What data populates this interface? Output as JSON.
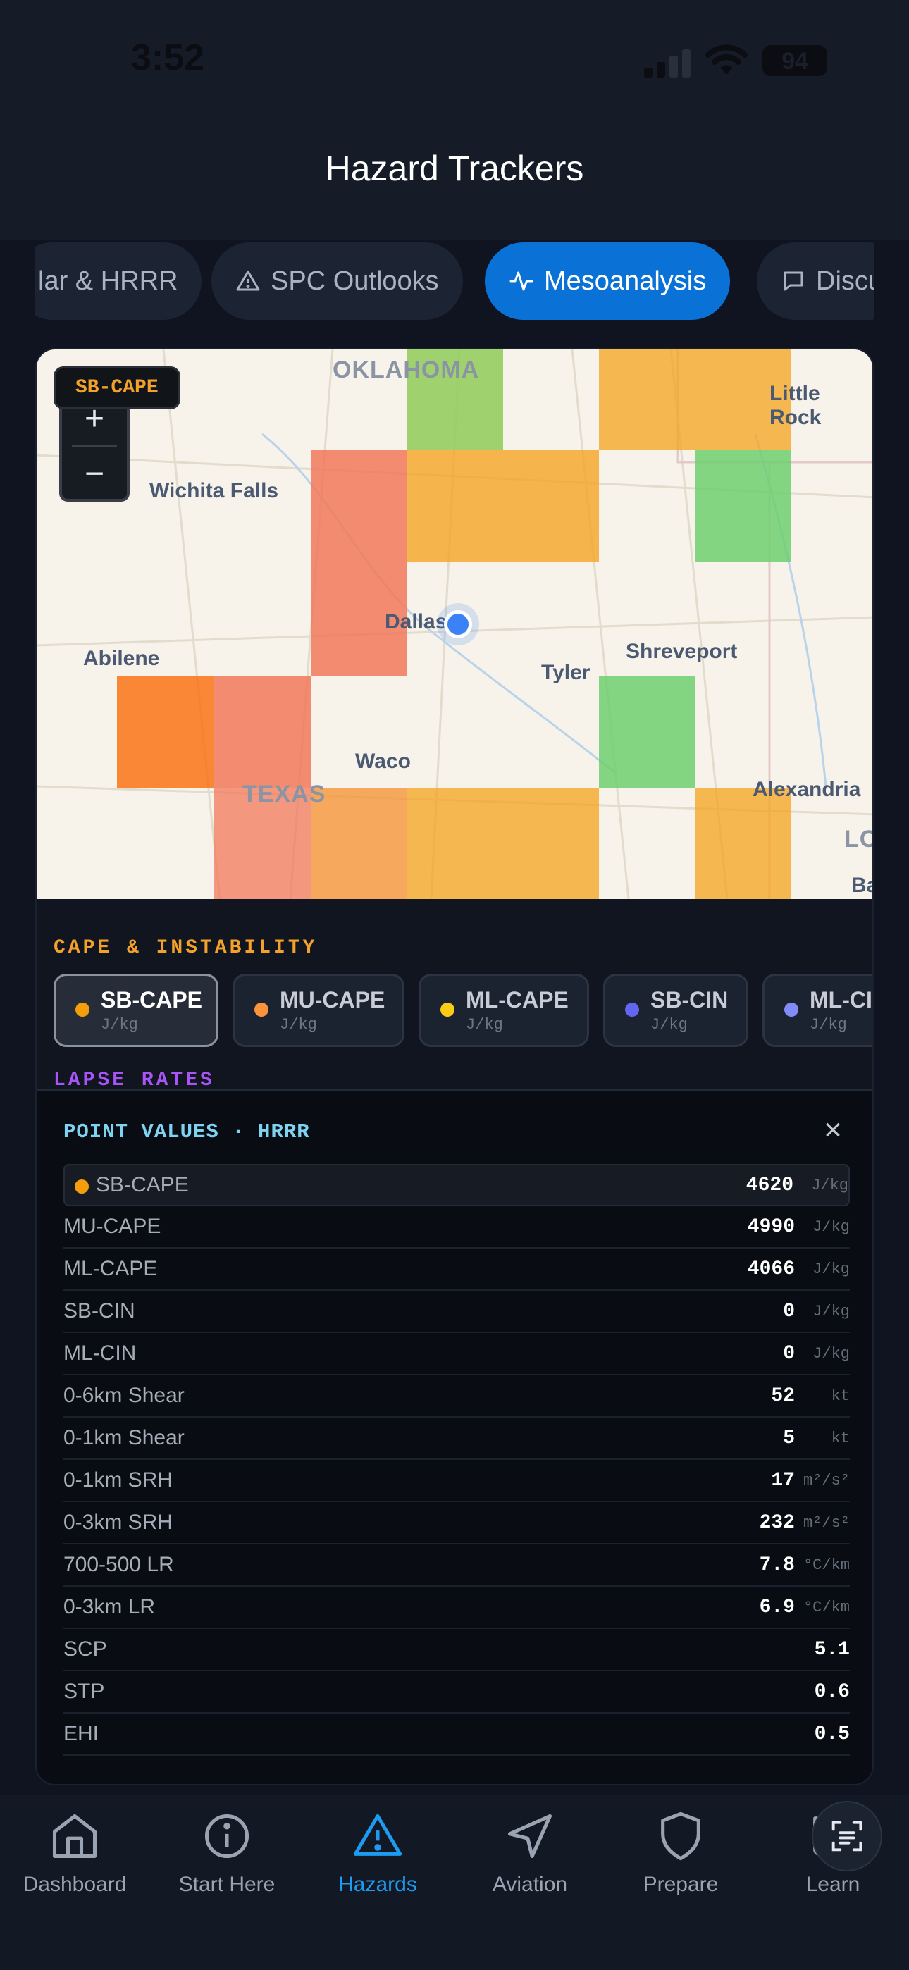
{
  "status": {
    "time": "3:52",
    "battery": "94"
  },
  "header": {
    "title": "Hazard Trackers"
  },
  "tabs": [
    {
      "label": "lar & HRRR"
    },
    {
      "label": "SPC Outlooks",
      "icon": "warning-icon"
    },
    {
      "label": "Mesoanalysis",
      "icon": "activity-icon",
      "active": true
    },
    {
      "label": "Discu",
      "icon": "chat-icon"
    }
  ],
  "map": {
    "badge": "SB-CAPE",
    "zoom_in": "+",
    "zoom_out": "−",
    "states": {
      "ok": "OKLAHOMA",
      "tx": "TEXAS",
      "la": "LO"
    },
    "cities": {
      "wichita": "Wichita Falls",
      "little_rock": "Little Rock",
      "dallas": "Dallas",
      "abilene": "Abilene",
      "tyler": "Tyler",
      "shreveport": "Shreveport",
      "waco": "Waco",
      "alexandria": "Alexandria",
      "ba": "Ba"
    },
    "colors": {
      "orange": "#f59e0b",
      "deep_orange": "#f97316",
      "red_orange": "#f2785a",
      "green": "#6fcf70"
    }
  },
  "sections": {
    "cape": "CAPE & INSTABILITY",
    "lapse": "LAPSE RATES"
  },
  "chips": [
    {
      "name": "SB-CAPE",
      "unit": "J/kg",
      "color": "#f59e0b",
      "active": true
    },
    {
      "name": "MU-CAPE",
      "unit": "J/kg",
      "color": "#fb923c"
    },
    {
      "name": "ML-CAPE",
      "unit": "J/kg",
      "color": "#facc15"
    },
    {
      "name": "SB-CIN",
      "unit": "J/kg",
      "color": "#6366f1"
    },
    {
      "name": "ML-CIN",
      "unit": "J/kg",
      "color": "#818cf8"
    }
  ],
  "point_values": {
    "title": "POINT VALUES · HRRR",
    "close": "×",
    "rows": [
      {
        "label": "SB-CAPE",
        "value": "4620",
        "unit": "J/kg"
      },
      {
        "label": "MU-CAPE",
        "value": "4990",
        "unit": "J/kg"
      },
      {
        "label": "ML-CAPE",
        "value": "4066",
        "unit": "J/kg"
      },
      {
        "label": "SB-CIN",
        "value": "0",
        "unit": "J/kg"
      },
      {
        "label": "ML-CIN",
        "value": "0",
        "unit": "J/kg"
      },
      {
        "label": "0-6km Shear",
        "value": "52",
        "unit": "kt"
      },
      {
        "label": "0-1km Shear",
        "value": "5",
        "unit": "kt"
      },
      {
        "label": "0-1km SRH",
        "value": "17",
        "unit": "m²/s²"
      },
      {
        "label": "0-3km SRH",
        "value": "232",
        "unit": "m²/s²"
      },
      {
        "label": "700-500 LR",
        "value": "7.8",
        "unit": "°C/km"
      },
      {
        "label": "0-3km LR",
        "value": "6.9",
        "unit": "°C/km"
      },
      {
        "label": "SCP",
        "value": "5.1",
        "unit": ""
      },
      {
        "label": "STP",
        "value": "0.6",
        "unit": ""
      },
      {
        "label": "EHI",
        "value": "0.5",
        "unit": ""
      }
    ]
  },
  "nav": [
    {
      "label": "Dashboard",
      "icon": "home-icon"
    },
    {
      "label": "Start Here",
      "icon": "info-icon"
    },
    {
      "label": "Hazards",
      "icon": "warning-icon",
      "active": true
    },
    {
      "label": "Aviation",
      "icon": "navigation-icon"
    },
    {
      "label": "Prepare",
      "icon": "shield-icon"
    },
    {
      "label": "Learn",
      "icon": "book-icon"
    }
  ]
}
